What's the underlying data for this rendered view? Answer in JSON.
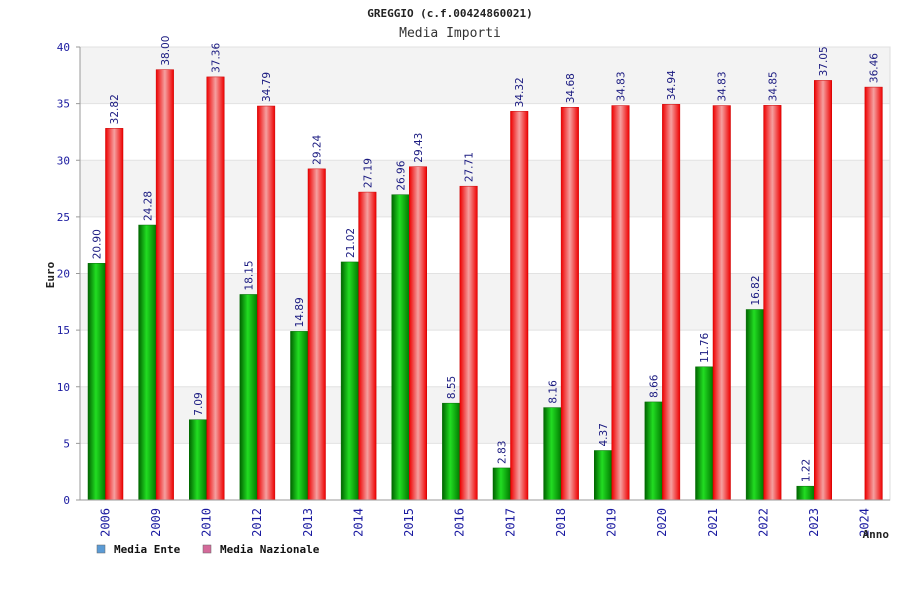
{
  "chart_data": {
    "type": "bar",
    "title": "GREGGIO (c.f.00424860021)",
    "subtitle": "Media Importi",
    "xlabel": "Anno",
    "ylabel": "Euro",
    "ylim": [
      0,
      40
    ],
    "yticks": [
      0,
      5,
      10,
      15,
      20,
      25,
      30,
      35,
      40
    ],
    "categories": [
      "2006",
      "2009",
      "2010",
      "2012",
      "2013",
      "2014",
      "2015",
      "2016",
      "2017",
      "2018",
      "2019",
      "2020",
      "2021",
      "2022",
      "2023",
      "2024"
    ],
    "series": [
      {
        "name": "Media Ente",
        "color": "#00b000",
        "values": [
          20.9,
          24.28,
          7.09,
          18.15,
          14.89,
          21.02,
          26.96,
          8.55,
          2.83,
          8.16,
          4.37,
          8.66,
          11.76,
          16.82,
          1.22,
          null
        ],
        "labels": [
          "20.90",
          "24.28",
          "7.09",
          "18.15",
          "14.89",
          "21.02",
          "26.96",
          "8.55",
          "2.83",
          "8.16",
          "4.37",
          "8.66",
          "11.76",
          "16.82",
          "1.22",
          ""
        ]
      },
      {
        "name": "Media Nazionale",
        "color": "#e00000",
        "values": [
          32.82,
          38.0,
          37.36,
          34.79,
          29.24,
          27.19,
          29.43,
          27.71,
          34.32,
          34.68,
          34.83,
          34.94,
          34.83,
          34.85,
          37.05,
          36.46
        ],
        "labels": [
          "32.82",
          "38.00",
          "37.36",
          "34.79",
          "29.24",
          "27.19",
          "29.43",
          "27.71",
          "34.32",
          "34.68",
          "34.83",
          "34.94",
          "34.83",
          "34.85",
          "37.05",
          "36.46"
        ]
      }
    ],
    "legend": [
      {
        "name": "Media Ente",
        "color": "#5b9bd5"
      },
      {
        "name": "Media Nazionale",
        "color": "#d46a9a"
      }
    ],
    "legend_position": "bottom-left",
    "grid": true
  }
}
